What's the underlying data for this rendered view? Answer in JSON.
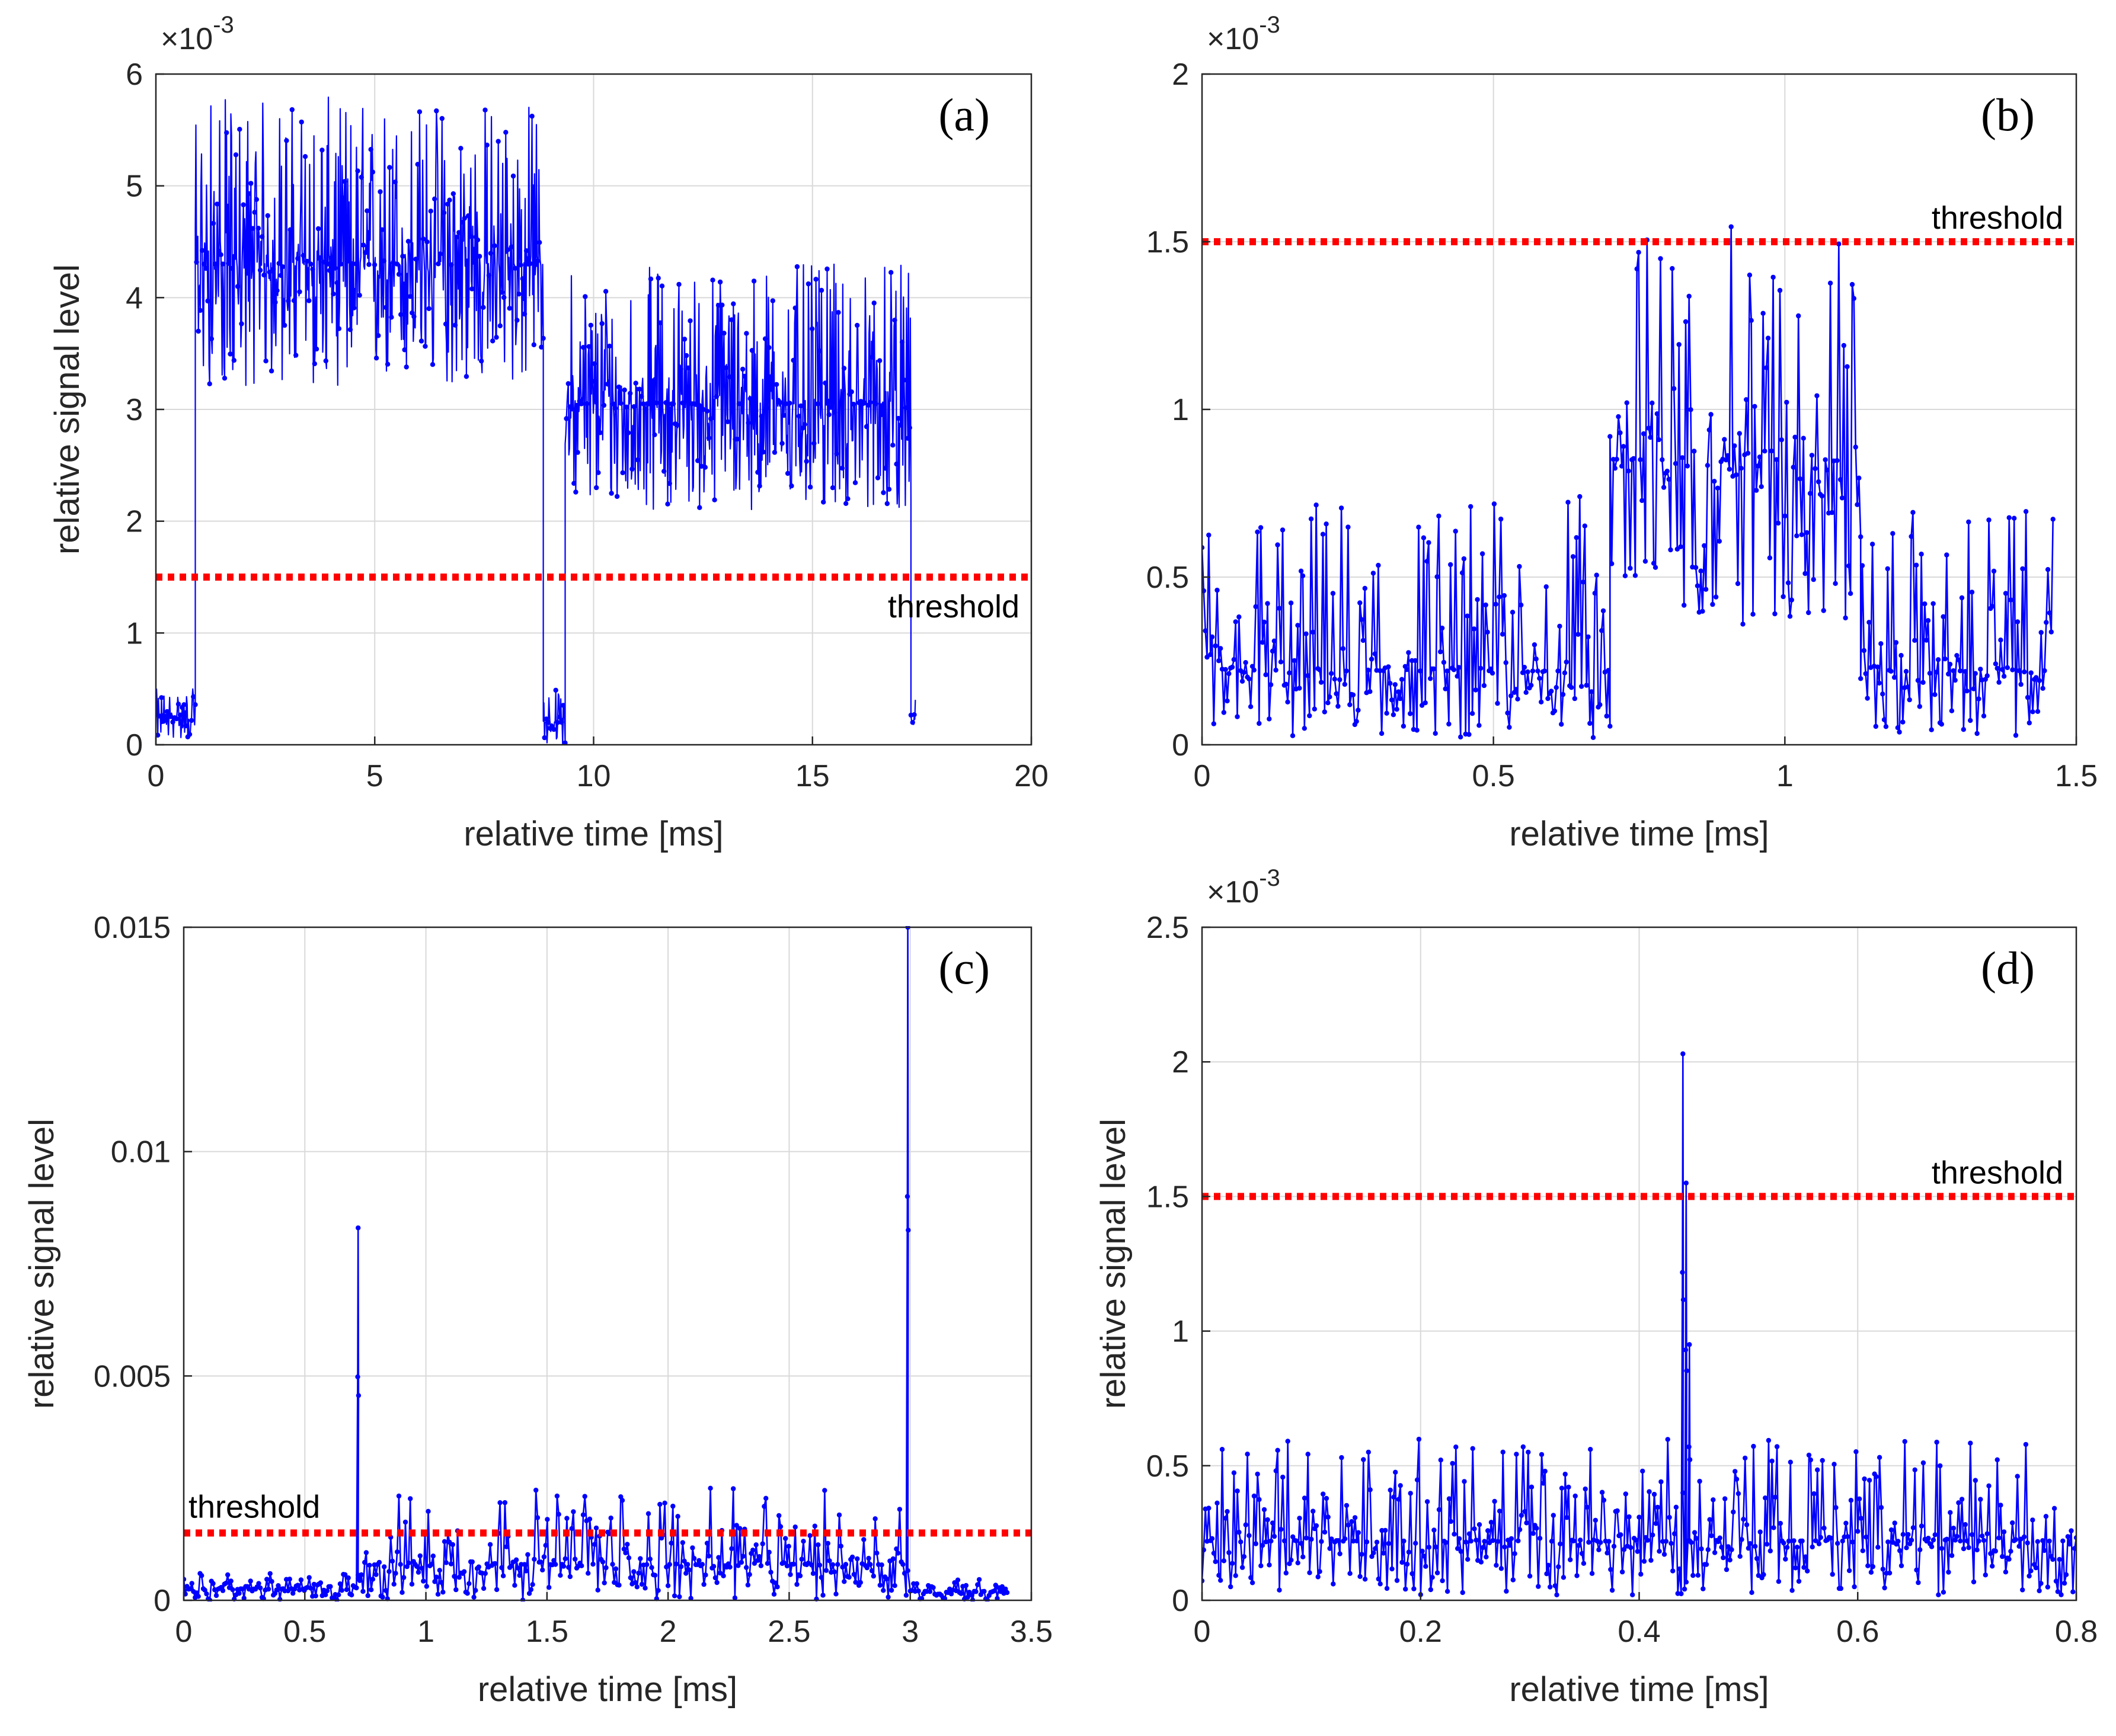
{
  "figure": {
    "panel_tags": [
      "(a)",
      "(b)",
      "(c)",
      "(d)"
    ]
  },
  "colors": {
    "signal": "#0000ff",
    "threshold": "#ff0000",
    "grid": "#d9d9d9",
    "axis": "#262626"
  },
  "chart_data": [
    {
      "id": "a",
      "type": "line",
      "tag": "(a)",
      "xlabel": "relative time [ms]",
      "ylabel": "relative signal level",
      "exponent_label": "×10",
      "exponent_power": "-3",
      "xlim": [
        0,
        20
      ],
      "ylim": [
        0,
        6
      ],
      "xticks": [
        "0",
        "5",
        "10",
        "15",
        "20"
      ],
      "yticks": [
        "0",
        "1",
        "2",
        "3",
        "4",
        "5",
        "6"
      ],
      "threshold": {
        "value": 1.5,
        "label": "threshold",
        "label_pos": "below-right"
      },
      "series": [
        {
          "name": "signal",
          "segments": [
            {
              "x": [
                0,
                0.9
              ],
              "low": 0.05,
              "high": 0.5,
              "base": 0.25
            },
            {
              "x": [
                0.9,
                8.85
              ],
              "low": 3.2,
              "high": 5.8,
              "base": 4.3
            },
            {
              "x": [
                8.85,
                9.35
              ],
              "low": 0.0,
              "high": 0.5,
              "base": 0.2
            },
            {
              "x": [
                9.35,
                17.25
              ],
              "low": 2.1,
              "high": 4.3,
              "base": 3.05
            },
            {
              "x": [
                17.25,
                17.35
              ],
              "low": 0.0,
              "high": 0.5,
              "base": 0.2
            }
          ]
        }
      ]
    },
    {
      "id": "b",
      "type": "line",
      "tag": "(b)",
      "xlabel": "relative time [ms]",
      "ylabel": "",
      "exponent_label": "×10",
      "exponent_power": "-3",
      "xlim": [
        0,
        1.5
      ],
      "ylim": [
        0,
        2
      ],
      "xticks": [
        "0",
        "0.5",
        "1",
        "1.5"
      ],
      "yticks": [
        "0",
        "0.5",
        "1",
        "1.5",
        "2"
      ],
      "threshold": {
        "value": 1.5,
        "label": "threshold",
        "label_pos": "above-right"
      },
      "series": [
        {
          "name": "signal",
          "segments": [
            {
              "x": [
                0,
                0.7
              ],
              "low": 0.02,
              "high": 0.75,
              "base": 0.22
            },
            {
              "x": [
                0.7,
                1.13
              ],
              "low": 0.35,
              "high": 1.55,
              "base": 0.85
            },
            {
              "x": [
                1.13,
                1.46
              ],
              "low": 0.02,
              "high": 0.7,
              "base": 0.22
            }
          ]
        }
      ]
    },
    {
      "id": "c",
      "type": "line",
      "tag": "(c)",
      "xlabel": "relative time [ms]",
      "ylabel": "relative signal level",
      "exponent_label": "",
      "exponent_power": "",
      "xlim": [
        0,
        3.5
      ],
      "ylim": [
        0,
        0.015
      ],
      "xticks": [
        "0",
        "0.5",
        "1",
        "1.5",
        "2",
        "2.5",
        "3",
        "3.5"
      ],
      "yticks": [
        "0",
        "0.005",
        "0.01",
        "0.015"
      ],
      "threshold": {
        "value": 0.0015,
        "label": "threshold",
        "label_pos": "above-left"
      },
      "series": [
        {
          "name": "signal",
          "segments": [
            {
              "x": [
                0,
                0.72
              ],
              "low": 0.0,
              "high": 0.0006,
              "base": 0.00025
            },
            {
              "x": [
                0.72,
                2.99
              ],
              "low": 0.0,
              "high": 0.0025,
              "base": 0.0008
            },
            {
              "x": [
                3.0,
                3.4
              ],
              "low": 0.0,
              "high": 0.0005,
              "base": 0.0002
            }
          ],
          "spikes": [
            {
              "x": 0.72,
              "y": 0.0083
            },
            {
              "x": 2.99,
              "y": 0.015
            }
          ]
        }
      ]
    },
    {
      "id": "d",
      "type": "line",
      "tag": "(d)",
      "xlabel": "relative time [ms]",
      "ylabel": "relative signal level",
      "exponent_label": "×10",
      "exponent_power": "-3",
      "xlim": [
        0,
        0.8
      ],
      "ylim": [
        0,
        2.5
      ],
      "xticks": [
        "0",
        "0.2",
        "0.4",
        "0.6",
        "0.8"
      ],
      "yticks": [
        "0",
        "0.5",
        "1",
        "1.5",
        "2",
        "2.5"
      ],
      "threshold": {
        "value": 1.5,
        "label": "threshold",
        "label_pos": "above-right"
      },
      "series": [
        {
          "name": "signal",
          "segments": [
            {
              "x": [
                0,
                0.8
              ],
              "low": 0.02,
              "high": 0.6,
              "base": 0.22
            }
          ],
          "spikes": [
            {
              "x": 0.44,
              "y": 2.03
            },
            {
              "x": 0.443,
              "y": 1.55
            },
            {
              "x": 0.446,
              "y": 0.95
            }
          ]
        }
      ]
    }
  ]
}
